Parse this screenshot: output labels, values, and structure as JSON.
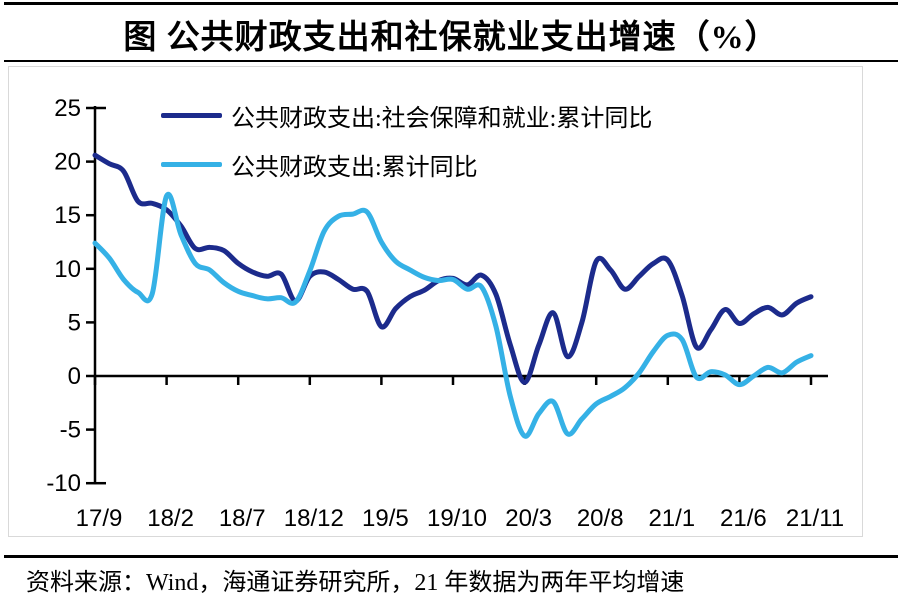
{
  "title": "图 公共财政支出和社保就业支出增速（%）",
  "source_note": "资料来源：Wind，海通证券研究所，21 年数据为两年平均增速",
  "colors": {
    "series_dark": "#1c2b8c",
    "series_light": "#35b1e6",
    "axis": "#000000",
    "chart_frame": "#d9d9d9"
  },
  "chart_data": {
    "type": "line",
    "smooth": true,
    "grid": false,
    "legend_position": "top-left-inside",
    "ylim": [
      -10,
      25
    ],
    "y_ticks": [
      25,
      20,
      15,
      10,
      5,
      0,
      -5,
      -10
    ],
    "x_tick_labels": [
      "17/9",
      "18/2",
      "18/7",
      "18/12",
      "19/5",
      "19/10",
      "20/3",
      "20/8",
      "21/1",
      "21/6",
      "21/11"
    ],
    "months_between_ticks": 5,
    "series": [
      {
        "name": "公共财政支出:社会保障和就业:累计同比",
        "color": "#1c2b8c",
        "values": [
          20.6,
          19.8,
          19.1,
          16.3,
          16.1,
          15.5,
          14.0,
          11.9,
          12.0,
          11.7,
          10.5,
          9.7,
          9.3,
          9.5,
          7.0,
          9.3,
          9.7,
          9.0,
          8.1,
          7.9,
          4.6,
          6.3,
          7.4,
          8.0,
          8.9,
          9.1,
          8.5,
          9.4,
          7.6,
          2.9,
          -0.6,
          2.9,
          5.9,
          1.8,
          5.0,
          10.7,
          9.9,
          8.1,
          9.3,
          10.5,
          10.8,
          7.5,
          2.7,
          4.3,
          6.2,
          4.9,
          5.8,
          6.4,
          5.7,
          6.8,
          7.4
        ]
      },
      {
        "name": "公共财政支出:累计同比",
        "color": "#35b1e6",
        "values": [
          12.4,
          11.0,
          9.0,
          7.8,
          7.7,
          16.8,
          13.2,
          10.5,
          9.9,
          8.7,
          7.9,
          7.5,
          7.2,
          7.3,
          6.9,
          9.8,
          13.5,
          14.9,
          15.1,
          15.3,
          12.5,
          10.7,
          9.9,
          9.2,
          8.9,
          9.0,
          8.1,
          8.3,
          4.6,
          -1.9,
          -5.6,
          -3.5,
          -2.4,
          -5.4,
          -4.0,
          -2.6,
          -1.9,
          -1.1,
          0.3,
          2.3,
          3.8,
          3.4,
          -0.1,
          0.4,
          0.1,
          -0.8,
          0.0,
          0.8,
          0.3,
          1.3,
          1.9
        ]
      }
    ]
  }
}
